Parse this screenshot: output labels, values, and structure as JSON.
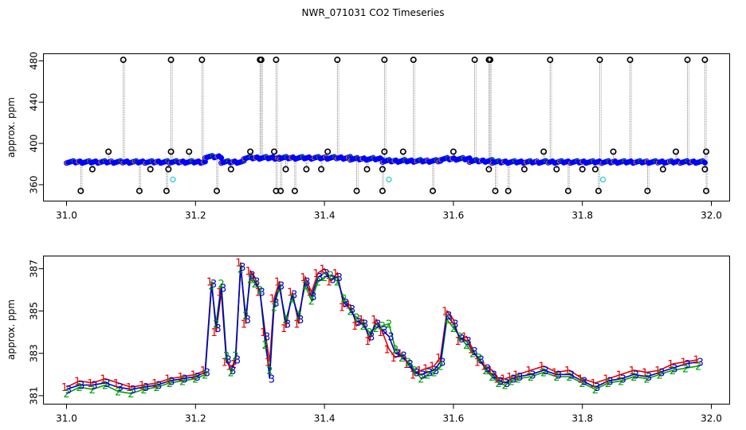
{
  "title": "NWR_071031  CO2 Timeseries",
  "colors": {
    "outline": "#000000",
    "raw_fill": "#0000ff",
    "flag_orange": "#ff8c00",
    "green": "#00a000",
    "cyan": "#3fd0d0",
    "drop": "#707070",
    "red": "#e00000",
    "blue": "#0000cc"
  },
  "chart_data": [
    {
      "type": "scatter",
      "ylabel": "approx. ppm",
      "xlabel": "",
      "xlim": [
        31.0,
        32.0
      ],
      "ylim": [
        348,
        483
      ],
      "x_ticks": [
        "31.0",
        "31.2",
        "31.4",
        "31.6",
        "31.8",
        "32.0"
      ],
      "y_ticks": [
        "360",
        "400",
        "440",
        "480"
      ],
      "grid": false,
      "series": [
        {
          "role": "baseline",
          "segments": [
            {
              "x": [
                31.0,
                31.16
              ],
              "y": [
                382,
                382
              ]
            },
            {
              "x": [
                31.16,
                31.215
              ],
              "y": [
                382,
                382
              ]
            },
            {
              "x": [
                31.215,
                31.24
              ],
              "y": [
                387,
                387
              ]
            },
            {
              "x": [
                31.24,
                31.275
              ],
              "y": [
                382,
                382
              ]
            },
            {
              "x": [
                31.275,
                31.33
              ],
              "y": [
                386,
                386
              ]
            },
            {
              "x": [
                31.33,
                31.44
              ],
              "y": [
                386,
                386
              ]
            },
            {
              "x": [
                31.44,
                31.49
              ],
              "y": [
                385,
                385
              ]
            },
            {
              "x": [
                31.49,
                31.58
              ],
              "y": [
                383,
                383
              ]
            },
            {
              "x": [
                31.58,
                31.625
              ],
              "y": [
                385,
                385
              ]
            },
            {
              "x": [
                31.625,
                31.66
              ],
              "y": [
                383,
                383
              ]
            },
            {
              "x": [
                31.66,
                31.83
              ],
              "y": [
                382,
                382
              ]
            },
            {
              "x": [
                31.83,
                31.99
              ],
              "y": [
                382,
                382
              ]
            }
          ]
        },
        {
          "role": "spikes_high",
          "x": [
            31.088,
            31.162,
            31.21,
            31.3,
            31.302,
            31.325,
            31.42,
            31.493,
            31.538,
            31.633,
            31.655,
            31.657,
            31.75,
            31.827,
            31.874,
            31.963,
            31.99
          ],
          "y": [
            481,
            481,
            481,
            481,
            481,
            481,
            481,
            481,
            481,
            481,
            481,
            481,
            481,
            481,
            481,
            481,
            481
          ]
        },
        {
          "role": "spikes_low",
          "x": [
            31.022,
            31.113,
            31.155,
            31.233,
            31.325,
            31.332,
            31.354,
            31.45,
            31.49,
            31.568,
            31.665,
            31.685,
            31.778,
            31.825,
            31.901,
            31.992
          ],
          "y": [
            354,
            354,
            354,
            354,
            354,
            354,
            354,
            354,
            354,
            354,
            354,
            354,
            354,
            354,
            354,
            354
          ]
        },
        {
          "role": "mid_outliers",
          "x": [
            31.04,
            31.065,
            31.13,
            31.158,
            31.162,
            31.19,
            31.255,
            31.285,
            31.322,
            31.34,
            31.372,
            31.395,
            31.405,
            31.466,
            31.49,
            31.493,
            31.522,
            31.6,
            31.655,
            31.71,
            31.74,
            31.76,
            31.8,
            31.82,
            31.848,
            31.925,
            31.945,
            31.99,
            31.992
          ],
          "y": [
            375,
            392,
            375,
            375,
            392,
            392,
            375,
            392,
            392,
            375,
            375,
            375,
            392,
            375,
            375,
            392,
            392,
            392,
            375,
            375,
            392,
            375,
            375,
            375,
            392,
            375,
            392,
            375,
            392
          ]
        },
        {
          "role": "cyan_points",
          "x": [
            31.165,
            31.5,
            31.832
          ],
          "y": [
            365,
            365,
            365
          ]
        }
      ]
    },
    {
      "type": "line",
      "ylabel": "approx. ppm",
      "xlabel": "",
      "xlim": [
        31.0,
        32.0
      ],
      "ylim": [
        380.6,
        387.6
      ],
      "x_ticks": [
        "31.0",
        "31.2",
        "31.4",
        "31.6",
        "31.8",
        "32.0"
      ],
      "y_ticks": [
        "381",
        "383",
        "385",
        "387"
      ],
      "grid": false,
      "series": [
        {
          "name": "1",
          "x": [
            31.0,
            31.02,
            31.04,
            31.06,
            31.08,
            31.1,
            31.12,
            31.14,
            31.16,
            31.18,
            31.2,
            31.215,
            31.225,
            31.232,
            31.24,
            31.248,
            31.255,
            31.262,
            31.27,
            31.278,
            31.285,
            31.292,
            31.3,
            31.308,
            31.315,
            31.322,
            31.33,
            31.34,
            31.35,
            31.36,
            31.37,
            31.38,
            31.39,
            31.4,
            31.41,
            31.42,
            31.43,
            31.44,
            31.45,
            31.46,
            31.47,
            31.48,
            31.49,
            31.5,
            31.51,
            31.52,
            31.53,
            31.54,
            31.55,
            31.56,
            31.57,
            31.58,
            31.59,
            31.6,
            31.61,
            31.62,
            31.63,
            31.64,
            31.65,
            31.66,
            31.67,
            31.68,
            31.69,
            31.7,
            31.72,
            31.74,
            31.76,
            31.78,
            31.8,
            31.82,
            31.84,
            31.86,
            31.88,
            31.9,
            31.92,
            31.94,
            31.96,
            31.98
          ],
          "y": [
            381.4,
            381.7,
            381.6,
            381.8,
            381.6,
            381.4,
            381.5,
            381.6,
            381.8,
            381.9,
            382.0,
            382.2,
            386.4,
            384.0,
            385.9,
            382.6,
            382.4,
            382.5,
            387.3,
            384.4,
            386.9,
            386.6,
            385.9,
            384.0,
            382.6,
            385.6,
            386.4,
            384.2,
            385.9,
            384.4,
            386.6,
            385.9,
            386.8,
            387.0,
            386.4,
            386.8,
            385.2,
            385.3,
            384.3,
            384.6,
            383.6,
            384.6,
            384.0,
            383.2,
            382.8,
            383.0,
            382.5,
            382.0,
            382.2,
            382.3,
            382.4,
            382.8,
            385.0,
            384.6,
            383.6,
            383.8,
            383.2,
            382.6,
            382.4,
            382.2,
            381.8,
            381.8,
            381.9,
            382.0,
            382.2,
            382.4,
            382.1,
            382.2,
            381.8,
            381.6,
            381.8,
            382.0,
            382.2,
            382.1,
            382.2,
            382.5,
            382.6,
            382.7
          ]
        },
        {
          "name": "2",
          "x": [
            31.0,
            31.02,
            31.04,
            31.06,
            31.08,
            31.1,
            31.12,
            31.14,
            31.16,
            31.18,
            31.2,
            31.215,
            31.225,
            31.232,
            31.24,
            31.248,
            31.255,
            31.262,
            31.27,
            31.278,
            31.285,
            31.292,
            31.3,
            31.308,
            31.315,
            31.322,
            31.33,
            31.34,
            31.35,
            31.36,
            31.37,
            31.38,
            31.39,
            31.4,
            31.41,
            31.42,
            31.43,
            31.44,
            31.45,
            31.46,
            31.47,
            31.48,
            31.49,
            31.5,
            31.51,
            31.52,
            31.53,
            31.54,
            31.55,
            31.56,
            31.57,
            31.58,
            31.59,
            31.6,
            31.61,
            31.62,
            31.63,
            31.64,
            31.65,
            31.66,
            31.67,
            31.68,
            31.69,
            31.7,
            31.72,
            31.74,
            31.76,
            31.78,
            31.8,
            31.82,
            31.84,
            31.86,
            31.88,
            31.9,
            31.92,
            31.94,
            31.96,
            31.98
          ],
          "y": [
            381.1,
            381.4,
            381.3,
            381.5,
            381.2,
            381.1,
            381.3,
            381.4,
            381.6,
            381.7,
            381.8,
            382.0,
            386.2,
            384.4,
            386.3,
            382.9,
            382.1,
            382.9,
            387.0,
            384.8,
            386.5,
            386.3,
            386.0,
            383.4,
            382.2,
            385.2,
            386.1,
            384.6,
            385.6,
            384.8,
            386.2,
            385.5,
            386.4,
            386.6,
            386.7,
            386.4,
            385.6,
            385.0,
            384.7,
            384.3,
            384.0,
            384.2,
            384.3,
            384.4,
            383.2,
            382.8,
            382.6,
            382.2,
            381.8,
            382.0,
            382.1,
            382.4,
            384.6,
            384.2,
            383.8,
            383.4,
            383.0,
            382.8,
            382.2,
            381.9,
            381.6,
            381.5,
            381.7,
            381.8,
            381.9,
            382.1,
            381.9,
            381.9,
            381.6,
            381.3,
            381.6,
            381.7,
            381.9,
            381.8,
            382.0,
            382.2,
            382.3,
            382.4
          ]
        },
        {
          "name": "3",
          "x": [
            31.0,
            31.02,
            31.04,
            31.06,
            31.08,
            31.1,
            31.12,
            31.14,
            31.16,
            31.18,
            31.2,
            31.215,
            31.225,
            31.232,
            31.24,
            31.248,
            31.255,
            31.262,
            31.27,
            31.278,
            31.285,
            31.292,
            31.3,
            31.308,
            31.315,
            31.322,
            31.33,
            31.34,
            31.35,
            31.36,
            31.37,
            31.38,
            31.39,
            31.4,
            31.41,
            31.42,
            31.43,
            31.44,
            31.45,
            31.46,
            31.47,
            31.48,
            31.49,
            31.5,
            31.51,
            31.52,
            31.53,
            31.54,
            31.55,
            31.56,
            31.57,
            31.58,
            31.59,
            31.6,
            31.61,
            31.62,
            31.63,
            31.64,
            31.65,
            31.66,
            31.67,
            31.68,
            31.69,
            31.7,
            31.72,
            31.74,
            31.76,
            31.78,
            31.8,
            31.82,
            31.84,
            31.86,
            31.88,
            31.9,
            31.92,
            31.94,
            31.96,
            31.98
          ],
          "y": [
            381.3,
            381.5,
            381.5,
            381.6,
            381.4,
            381.3,
            381.4,
            381.5,
            381.7,
            381.8,
            381.9,
            382.1,
            386.3,
            384.2,
            386.1,
            382.7,
            382.2,
            382.7,
            387.1,
            384.6,
            386.7,
            386.4,
            385.9,
            383.8,
            381.8,
            385.4,
            386.2,
            384.4,
            385.8,
            384.6,
            386.4,
            385.7,
            386.6,
            386.8,
            386.5,
            386.6,
            385.4,
            385.1,
            384.5,
            384.4,
            383.8,
            384.4,
            384.1,
            383.8,
            383.0,
            382.9,
            382.5,
            382.1,
            382.0,
            382.1,
            382.2,
            382.6,
            384.8,
            384.4,
            383.7,
            383.6,
            383.1,
            382.7,
            382.3,
            382.0,
            381.7,
            381.6,
            381.8,
            381.9,
            382.0,
            382.2,
            382.0,
            382.0,
            381.7,
            381.4,
            381.7,
            381.8,
            382.0,
            381.9,
            382.1,
            382.3,
            382.5,
            382.6
          ]
        }
      ]
    }
  ]
}
